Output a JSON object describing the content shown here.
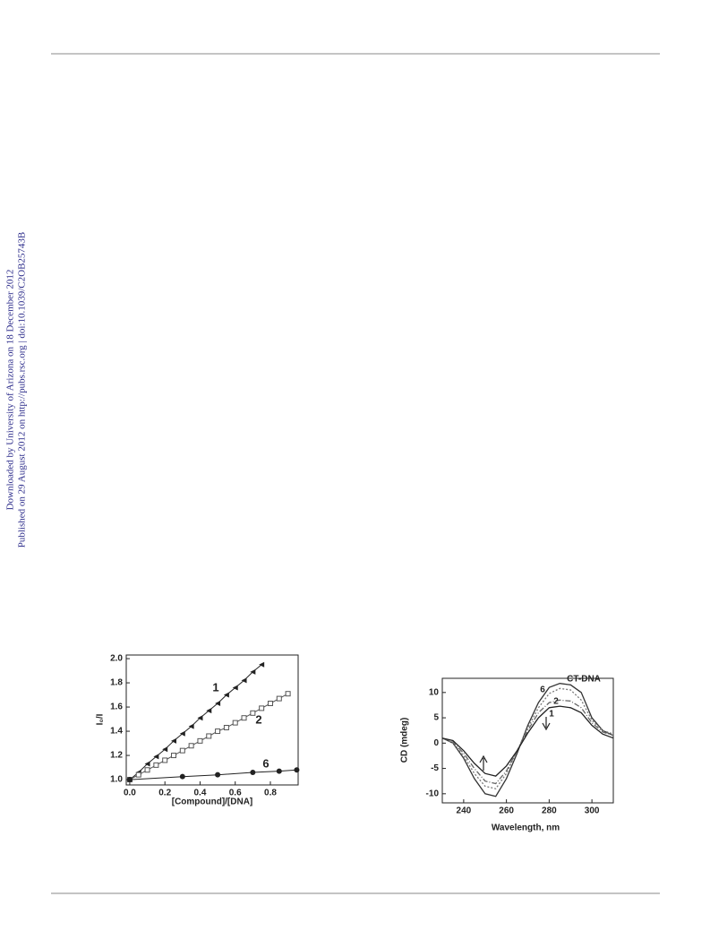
{
  "side_note": [
    "Downloaded by University of Arizona on 18 December 2012",
    "Published on 29 August 2012 on http://pubs.rsc.org | doi:10.1039/C2OB25743B"
  ],
  "chart_data": [
    {
      "type": "scatter",
      "x_label": "[Compound]/[DNA]",
      "y_label": "I₀/I",
      "xlim": [
        -0.02,
        0.958
      ],
      "ylim": [
        0.956,
        2.03
      ],
      "xticks": [
        {
          "value": 0,
          "label": "0.0"
        },
        {
          "value": 0.2,
          "label": "0.2"
        },
        {
          "value": 0.4,
          "label": "0.4"
        },
        {
          "value": 0.6,
          "label": "0.6"
        },
        {
          "value": 0.8,
          "label": "0.8"
        }
      ],
      "yticks": [
        {
          "value": 1,
          "label": "1.0"
        },
        {
          "value": 1.2,
          "label": "1.2"
        },
        {
          "value": 1.4,
          "label": "1.4"
        },
        {
          "value": 1.6,
          "label": "1.6"
        },
        {
          "value": 1.8,
          "label": "1.8"
        },
        {
          "value": 2,
          "label": "2.0"
        }
      ],
      "series": [
        {
          "name": "1",
          "color": "#222222",
          "marker": "triangle",
          "x": [
            0,
            0.05,
            0.1,
            0.15,
            0.2,
            0.25,
            0.3,
            0.35,
            0.4,
            0.45,
            0.5,
            0.55,
            0.6,
            0.65,
            0.7,
            0.75
          ],
          "values": [
            1.0,
            1.06,
            1.13,
            1.19,
            1.25,
            1.32,
            1.38,
            1.44,
            1.51,
            1.57,
            1.63,
            1.7,
            1.76,
            1.82,
            1.89,
            1.95
          ]
        },
        {
          "name": "2",
          "color": "#555555",
          "marker": "square",
          "x": [
            0,
            0.05,
            0.1,
            0.15,
            0.2,
            0.25,
            0.3,
            0.35,
            0.4,
            0.45,
            0.5,
            0.55,
            0.6,
            0.65,
            0.7,
            0.75,
            0.8,
            0.85,
            0.9
          ],
          "values": [
            1.0,
            1.04,
            1.08,
            1.12,
            1.16,
            1.2,
            1.24,
            1.28,
            1.32,
            1.36,
            1.4,
            1.43,
            1.47,
            1.51,
            1.55,
            1.59,
            1.63,
            1.67,
            1.71
          ]
        },
        {
          "name": "6",
          "color": "#222222",
          "marker": "circle",
          "x": [
            0,
            0.3,
            0.5,
            0.7,
            0.85,
            0.95
          ],
          "values": [
            1.0,
            1.025,
            1.04,
            1.06,
            1.07,
            1.08
          ]
        }
      ]
    },
    {
      "type": "line",
      "x_label": "Wavelength, nm",
      "y_label": "CD (mdeg)",
      "x": [
        230,
        235,
        240,
        245,
        250,
        255,
        260,
        265,
        270,
        275,
        280,
        285,
        290,
        295,
        300,
        305,
        310
      ],
      "xlim": [
        230,
        310
      ],
      "ylim": [
        -11.8,
        12.8
      ],
      "xticks": [
        240,
        260,
        280,
        300
      ],
      "yticks": [
        -10,
        -5,
        0,
        5,
        10
      ],
      "series": [
        {
          "name": "CT-DNA",
          "color": "#333333",
          "dash": "none",
          "values": [
            1,
            0,
            -3,
            -7,
            -10,
            -10.5,
            -7,
            -2,
            3.5,
            8,
            11,
            11.8,
            11.5,
            10,
            5,
            2.5,
            1.5
          ]
        },
        {
          "name": "6",
          "color": "#777777",
          "dash": "2 2",
          "values": [
            1,
            0,
            -2.5,
            -6,
            -8.5,
            -9,
            -6,
            -1.5,
            3,
            7,
            9.8,
            10.8,
            10.5,
            8.5,
            4.5,
            2.5,
            1.8
          ]
        },
        {
          "name": "2",
          "color": "#666666",
          "dash": "6 2 1 2",
          "values": [
            1,
            0.2,
            -2,
            -5,
            -7.5,
            -8,
            -5.5,
            -1.5,
            2.5,
            6,
            8,
            8.5,
            8.3,
            7,
            4,
            2.2,
            1.5
          ]
        },
        {
          "name": "1",
          "color": "#222222",
          "dash": "none",
          "values": [
            1,
            0.5,
            -1.5,
            -4,
            -6,
            -6.5,
            -4.5,
            -1.5,
            2,
            5,
            7,
            7.3,
            7,
            6,
            3.5,
            1.8,
            1
          ]
        }
      ]
    }
  ]
}
